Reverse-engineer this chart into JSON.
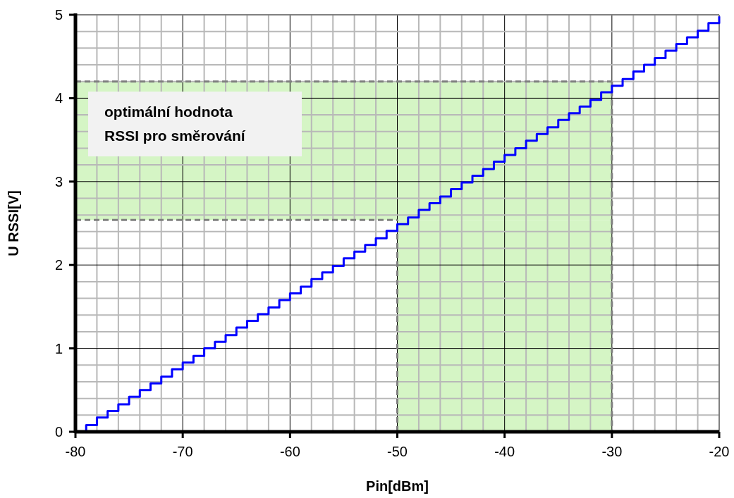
{
  "chart_data": {
    "type": "step",
    "xlabel": "Pin[dBm]",
    "ylabel": "U RSSI[V]",
    "xlim": [
      -80,
      -20
    ],
    "ylim": [
      0,
      5
    ],
    "xticks": [
      -80,
      {
        "value": -78,
        "label": null
      },
      {
        "value": -76,
        "label": null
      },
      {
        "value": -74,
        "label": null
      },
      {
        "value": -72,
        "label": null
      },
      -70,
      {
        "value": -68,
        "label": null
      },
      {
        "value": -66,
        "label": null
      },
      {
        "value": -64,
        "label": null
      },
      {
        "value": -62,
        "label": null
      },
      -60,
      {
        "value": -58,
        "label": null
      },
      {
        "value": -56,
        "label": null
      },
      {
        "value": -54,
        "label": null
      },
      {
        "value": -52,
        "label": null
      },
      -50,
      {
        "value": -48,
        "label": null
      },
      {
        "value": -46,
        "label": null
      },
      {
        "value": -44,
        "label": null
      },
      {
        "value": -42,
        "label": null
      },
      -40,
      {
        "value": -38,
        "label": null
      },
      {
        "value": -36,
        "label": null
      },
      {
        "value": -34,
        "label": null
      },
      {
        "value": -32,
        "label": null
      },
      -30,
      {
        "value": -28,
        "label": null
      },
      {
        "value": -26,
        "label": null
      },
      {
        "value": -24,
        "label": null
      },
      {
        "value": -22,
        "label": null
      },
      -20
    ],
    "yticks": [
      0,
      {
        "value": 0.2,
        "label": null
      },
      {
        "value": 0.4,
        "label": null
      },
      {
        "value": 0.6,
        "label": null
      },
      {
        "value": 0.8,
        "label": null
      },
      1,
      {
        "value": 1.2,
        "label": null
      },
      {
        "value": 1.4,
        "label": null
      },
      {
        "value": 1.6,
        "label": null
      },
      {
        "value": 1.8,
        "label": null
      },
      2,
      {
        "value": 2.2,
        "label": null
      },
      {
        "value": 2.4,
        "label": null
      },
      {
        "value": 2.6,
        "label": null
      },
      {
        "value": 2.8,
        "label": null
      },
      3,
      {
        "value": 3.2,
        "label": null
      },
      {
        "value": 3.4,
        "label": null
      },
      {
        "value": 3.6,
        "label": null
      },
      {
        "value": 3.8,
        "label": null
      },
      4,
      {
        "value": 4.2,
        "label": null
      },
      {
        "value": 4.4,
        "label": null
      },
      {
        "value": 4.6,
        "label": null
      },
      {
        "value": 4.8,
        "label": null
      },
      5
    ],
    "grid": true,
    "line_style": "solid",
    "marker": "none",
    "x": [
      -80,
      -79,
      -78,
      -77,
      -76,
      -75,
      -74,
      -73,
      -72,
      -71,
      -70,
      -69,
      -68,
      -67,
      -66,
      -65,
      -64,
      -63,
      -62,
      -61,
      -60,
      -59,
      -58,
      -57,
      -56,
      -55,
      -54,
      -53,
      -52,
      -51,
      -50,
      -49,
      -48,
      -47,
      -46,
      -45,
      -44,
      -43,
      -42,
      -41,
      -40,
      -39,
      -38,
      -37,
      -36,
      -35,
      -34,
      -33,
      -32,
      -31,
      -30,
      -29,
      -28,
      -27,
      -26,
      -25,
      -24,
      -23,
      -22,
      -21,
      -20
    ],
    "series": [
      {
        "color": "#0000ff",
        "values": [
          0,
          0.08,
          0.17,
          0.25,
          0.33,
          0.42,
          0.5,
          0.58,
          0.66,
          0.75,
          0.83,
          0.91,
          1.0,
          1.08,
          1.16,
          1.25,
          1.33,
          1.41,
          1.49,
          1.58,
          1.66,
          1.74,
          1.83,
          1.91,
          1.99,
          2.08,
          2.16,
          2.24,
          2.32,
          2.41,
          2.49,
          2.57,
          2.66,
          2.74,
          2.82,
          2.91,
          2.99,
          3.07,
          3.15,
          3.24,
          3.32,
          3.4,
          3.49,
          3.57,
          3.65,
          3.74,
          3.82,
          3.9,
          3.98,
          4.07,
          4.15,
          4.23,
          4.32,
          4.4,
          4.48,
          4.57,
          4.65,
          4.73,
          4.81,
          4.9,
          4.98
        ]
      }
    ],
    "bands": [
      {
        "axis": "x",
        "from": -50,
        "to": -30,
        "color": "#d5f5c5"
      },
      {
        "axis": "y",
        "from": 2.54,
        "to": 4.2,
        "color": "#d5f5c5"
      }
    ],
    "ref_lines": [
      {
        "axis": "x",
        "value": -50,
        "color": "#808080",
        "line_style": "dashed"
      },
      {
        "axis": "y",
        "value": 2.54,
        "color": "#808080",
        "line_style": "dashed"
      }
    ],
    "annotations": [
      "optimální hodnota\nRSSI pro směrování"
    ]
  }
}
